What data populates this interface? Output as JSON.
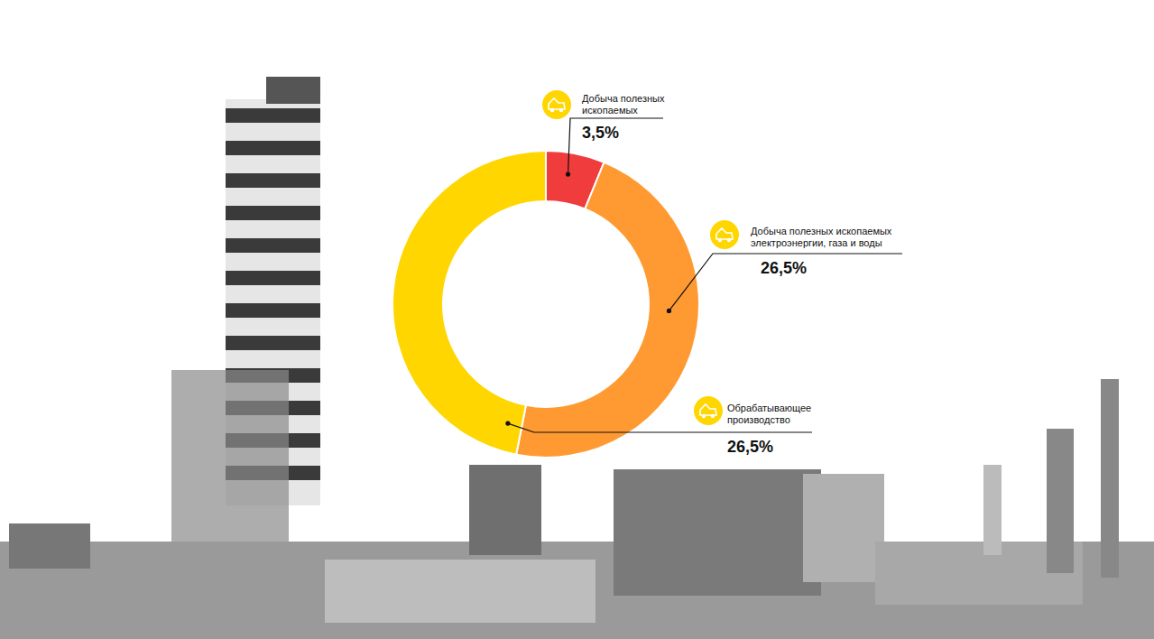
{
  "chart_data": {
    "type": "donut",
    "categories": [
      "Добыча полезных ископаемых",
      "Добыча полезных ископаемых электроэнергии, газа и воды",
      "Обрабатывающее производство"
    ],
    "values": [
      3.5,
      26.5,
      26.5
    ],
    "value_labels": [
      "3,5%",
      "26,5%",
      "26,5%"
    ],
    "colors": [
      "#F03C3C",
      "#FF9A33",
      "#FFD600"
    ],
    "data_labels": true
  }
}
